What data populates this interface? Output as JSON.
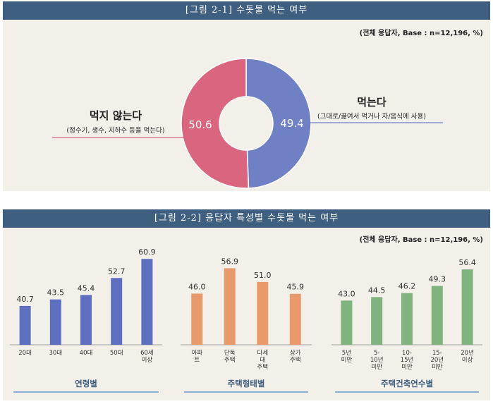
{
  "figure1": {
    "title": "[그림 2-1] 수돗물 먹는 여부",
    "base": "(전체 응답자, Base : n=12,196, %)",
    "left_label": "먹지 않는다",
    "left_sub": "(정수기, 생수, 지하수 등을 먹는다)",
    "right_label": "먹는다",
    "right_sub": "(그대로/끓여서 먹거나 차/음식에 사용)"
  },
  "figure2": {
    "title": "[그림 2-2] 응답자 특성별 수돗물 먹는 여부",
    "base": "(전체 응답자, Base : n=12,196, %)"
  },
  "chart_data": [
    {
      "type": "pie",
      "title": "[그림 2-1] 수돗물 먹는 여부",
      "categories": [
        "먹지 않는다",
        "먹는다"
      ],
      "values": [
        50.6,
        49.4
      ],
      "value_labels": [
        "50.6",
        "49.4"
      ],
      "colors": [
        "#d9657f",
        "#6f80c4"
      ]
    },
    {
      "type": "bar",
      "title": "[그림 2-2] 응답자 특성별 수돗물 먹는 여부",
      "groups": [
        {
          "name": "연령별",
          "color": "#5f6fbf",
          "categories": [
            "20대",
            "30대",
            "40대",
            "50대",
            "60세\n이상"
          ],
          "values": [
            40.7,
            43.5,
            45.4,
            52.7,
            60.9
          ],
          "value_labels": [
            "40.7",
            "43.5",
            "45.4",
            "52.7",
            "60.9"
          ]
        },
        {
          "name": "주택형태별",
          "color": "#e99a6c",
          "categories": [
            "아파\n트",
            "단독\n주택",
            "다세\n대\n주택",
            "상가\n주택"
          ],
          "values": [
            46.0,
            56.9,
            51.0,
            45.9
          ],
          "value_labels": [
            "46.0",
            "56.9",
            "51.0",
            "45.9"
          ]
        },
        {
          "name": "주택건축연수별",
          "color": "#7fb47e",
          "categories": [
            "5년\n미만",
            "5-\n10년\n미만",
            "10-\n15년\n미만",
            "15-\n20년\n미만",
            "20년\n이상"
          ],
          "values": [
            43.0,
            44.5,
            46.2,
            49.3,
            56.4
          ],
          "value_labels": [
            "43.0",
            "44.5",
            "46.2",
            "49.3",
            "56.4"
          ]
        }
      ]
    }
  ]
}
